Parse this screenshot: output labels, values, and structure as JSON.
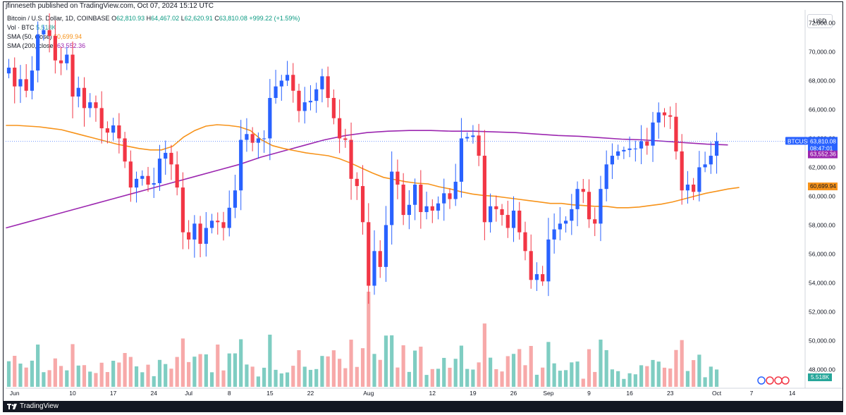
{
  "header": {
    "publisher_line": "jfinneseth published on TradingView.com, Oct 07, 2024 15:12 UTC",
    "currency_button": "USD",
    "brand": "TradingView"
  },
  "legend": {
    "symbol_title": "Bitcoin / U.S. Dollar, 1D, COINBASE",
    "ohlc": {
      "o_label": "O",
      "o": "62,810.93",
      "h_label": "H",
      "h": "64,467.02",
      "l_label": "L",
      "l": "62,620.91",
      "c_label": "C",
      "c": "63,810.08",
      "change": "+999.22 (+1.59%)"
    },
    "volume_label": "Vol · BTC",
    "volume_value": "5.518K",
    "sma50_label": "SMA (50, close)",
    "sma50_value": "60,699.94",
    "sma200_label": "SMA (200, close)",
    "sma200_value": "63,552.36"
  },
  "price_tags": {
    "symbol": "BTCUSD",
    "last_price": "63,810.08",
    "countdown": "08:47:01",
    "sma200": "63,552.36",
    "sma50": "60,699.94",
    "volume": "5.518K"
  },
  "colors": {
    "up": "#2962ff",
    "down": "#f23645",
    "vol_up": "#7fcdc2",
    "vol_down": "#f7a9a9",
    "sma50": "#f7931a",
    "sma200": "#9c27b0"
  },
  "chart_data": {
    "type": "candlestick",
    "ylim": [
      46800,
      72900
    ],
    "y_ticks": [
      "48,000.00",
      "50,000.00",
      "52,000.00",
      "54,000.00",
      "56,000.00",
      "58,000.00",
      "60,000.00",
      "62,000.00",
      "64,000.00",
      "66,000.00",
      "68,000.00",
      "70,000.00",
      "72,000.00"
    ],
    "x_tick_labels": [
      {
        "label": "Jun",
        "index": 1
      },
      {
        "label": "10",
        "index": 11
      },
      {
        "label": "17",
        "index": 18
      },
      {
        "label": "24",
        "index": 25
      },
      {
        "label": "Jul",
        "index": 31
      },
      {
        "label": "8",
        "index": 38
      },
      {
        "label": "15",
        "index": 45
      },
      {
        "label": "22",
        "index": 52
      },
      {
        "label": "Aug",
        "index": 62
      },
      {
        "label": "12",
        "index": 73
      },
      {
        "label": "19",
        "index": 80
      },
      {
        "label": "26",
        "index": 87
      },
      {
        "label": "Sep",
        "index": 93
      },
      {
        "label": "9",
        "index": 100
      },
      {
        "label": "16",
        "index": 107
      },
      {
        "label": "23",
        "index": 114
      },
      {
        "label": "Oct",
        "index": 122
      },
      {
        "label": "7",
        "index": 128
      },
      {
        "label": "14",
        "index": 135
      }
    ],
    "closes": [
      68900,
      67600,
      68100,
      67300,
      68700,
      71200,
      71500,
      71100,
      69400,
      69200,
      69800,
      66900,
      67500,
      66100,
      66500,
      66100,
      64700,
      64400,
      64900,
      64000,
      62400,
      60600,
      61200,
      61400,
      60800,
      60900,
      62600,
      63000,
      62200,
      60600,
      57500,
      57000,
      58100,
      56700,
      57800,
      58300,
      58200,
      57800,
      59200,
      60400,
      63900,
      64300,
      63700,
      64000,
      64000,
      66800,
      67600,
      68000,
      68400,
      67300,
      65900,
      66500,
      66600,
      67400,
      68300,
      66800,
      65400,
      64000,
      63900,
      61200,
      60700,
      58200,
      53800,
      56200,
      55100,
      58000,
      61700,
      60800,
      58700,
      59400,
      60800,
      58900,
      59300,
      59000,
      59500,
      60200,
      59800,
      61000,
      64000,
      64100,
      64200,
      62800,
      58200,
      59300,
      59100,
      58700,
      57800,
      59000,
      57500,
      56200,
      54200,
      54600,
      54100,
      57000,
      57700,
      58100,
      58300,
      59100,
      60500,
      60300,
      58400,
      58100,
      60500,
      62200,
      62800,
      63100,
      63200,
      63300,
      63300,
      63800,
      63500,
      65100,
      65800,
      65600,
      65500,
      63100,
      60400,
      60800,
      60300,
      62000,
      62200,
      62800,
      63810
    ],
    "highs_lows_note": "wicks approximated",
    "sma50": [
      64900,
      64900,
      64850,
      64800,
      64700,
      64600,
      64400,
      64200,
      64000,
      63800,
      63600,
      63450,
      63300,
      63200,
      63200,
      63450,
      64100,
      64550,
      64850,
      64950,
      64900,
      64800,
      64550,
      63900,
      63500,
      63300,
      63150,
      63000,
      62900,
      62800,
      62600,
      62300,
      61950,
      61600,
      61300,
      61150,
      61000,
      60900,
      60850,
      60650,
      60500,
      60300,
      60150,
      60050,
      60000,
      59900,
      59800,
      59700,
      59600,
      59500,
      59500,
      59400,
      59350,
      59300,
      59300,
      59200,
      59200,
      59250,
      59350,
      59450,
      59600,
      59800,
      60000,
      60200,
      60350,
      60500,
      60600
    ],
    "sma200": [
      57800,
      58200,
      58600,
      59000,
      59400,
      59800,
      60200,
      60600,
      61000,
      61400,
      61800,
      62200,
      62700,
      63100,
      63500,
      63900,
      64200,
      64400,
      64500,
      64550,
      64550,
      64500,
      64500,
      64450,
      64400,
      64300,
      64200,
      64150,
      64050,
      63950,
      63900,
      63800,
      63700,
      63600,
      63550
    ]
  }
}
